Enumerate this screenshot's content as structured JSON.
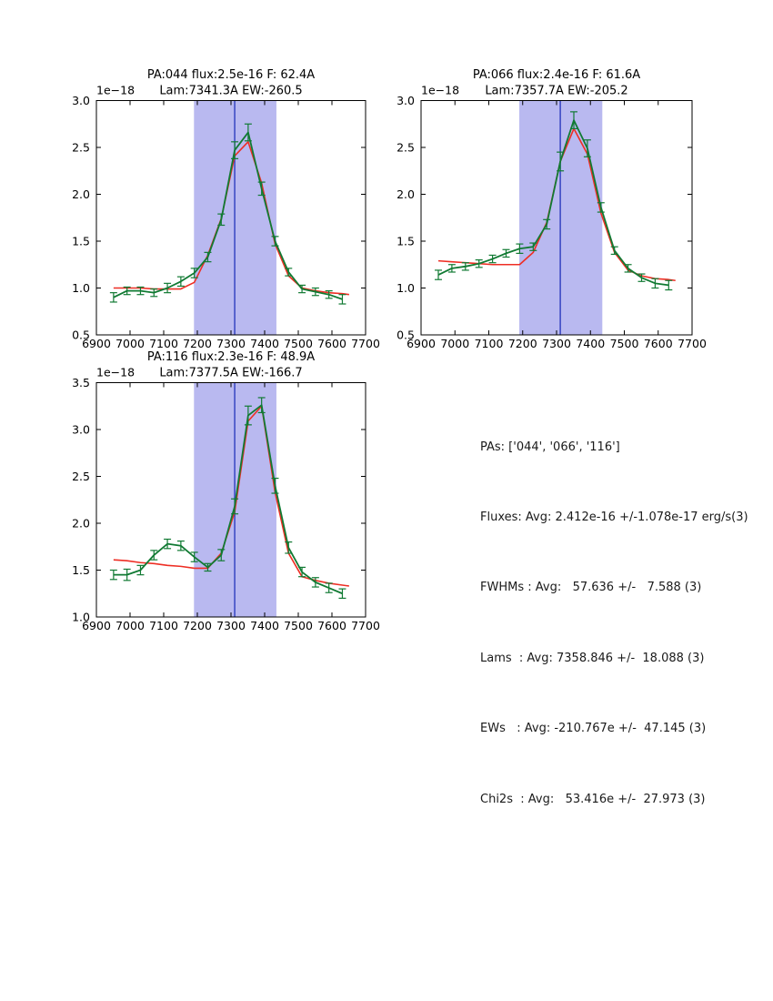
{
  "window": {
    "background": "#ffffff"
  },
  "colors": {
    "data_line": "#117a33",
    "fit_line": "#ee2e24",
    "band_fill": "#b9b9f0",
    "center_line": "#2233bb",
    "axis": "#000000",
    "text": "#1a1a1a"
  },
  "chart_data": [
    {
      "type": "line",
      "id": "pa-044",
      "title_line1": "PA:044 flux:2.5e-16 F: 62.4A",
      "title_line2": "Lam:7341.3A EW:-260.5",
      "offset_label": "1e−18",
      "xlim": [
        6900,
        7700
      ],
      "ylim": [
        0.5,
        3.0
      ],
      "xticks": [
        6900,
        7000,
        7100,
        7200,
        7300,
        7400,
        7500,
        7600,
        7700
      ],
      "yticks": [
        0.5,
        1.0,
        1.5,
        2.0,
        2.5,
        3.0
      ],
      "band": [
        7190,
        7435
      ],
      "vline": 7311,
      "grid": false,
      "x": [
        6951,
        6991,
        7031,
        7071,
        7111,
        7151,
        7191,
        7231,
        7271,
        7311,
        7351,
        7391,
        7431,
        7471,
        7511,
        7551,
        7591,
        7631
      ],
      "series": [
        {
          "name": "data-with-errorbars",
          "color_key": "data_line",
          "values": [
            0.9,
            0.97,
            0.97,
            0.95,
            1.0,
            1.07,
            1.16,
            1.33,
            1.73,
            2.47,
            2.66,
            2.06,
            1.5,
            1.17,
            0.99,
            0.96,
            0.93,
            0.88
          ],
          "yerr": [
            0.05,
            0.04,
            0.04,
            0.04,
            0.05,
            0.05,
            0.05,
            0.05,
            0.06,
            0.09,
            0.09,
            0.07,
            0.05,
            0.04,
            0.04,
            0.04,
            0.04,
            0.05
          ]
        },
        {
          "name": "gaussian-fit",
          "color_key": "fit_line",
          "x": [
            6951,
            6991,
            7031,
            7071,
            7111,
            7151,
            7191,
            7231,
            7271,
            7311,
            7351,
            7391,
            7431,
            7471,
            7511,
            7551,
            7591,
            7631,
            7651
          ],
          "values": [
            1.0,
            1.0,
            1.0,
            0.99,
            0.99,
            0.99,
            1.06,
            1.35,
            1.74,
            2.41,
            2.56,
            2.12,
            1.47,
            1.13,
            1.0,
            0.97,
            0.95,
            0.94,
            0.93
          ]
        }
      ]
    },
    {
      "type": "line",
      "id": "pa-066",
      "title_line1": "PA:066 flux:2.4e-16 F: 61.6A",
      "title_line2": "Lam:7357.7A EW:-205.2",
      "offset_label": "1e−18",
      "xlim": [
        6900,
        7700
      ],
      "ylim": [
        0.5,
        3.0
      ],
      "xticks": [
        6900,
        7000,
        7100,
        7200,
        7300,
        7400,
        7500,
        7600,
        7700
      ],
      "yticks": [
        0.5,
        1.0,
        1.5,
        2.0,
        2.5,
        3.0
      ],
      "band": [
        7190,
        7435
      ],
      "vline": 7311,
      "grid": false,
      "x": [
        6951,
        6991,
        7031,
        7071,
        7111,
        7151,
        7191,
        7231,
        7271,
        7311,
        7351,
        7391,
        7431,
        7471,
        7511,
        7551,
        7591,
        7631
      ],
      "series": [
        {
          "name": "data-with-errorbars",
          "color_key": "data_line",
          "values": [
            1.14,
            1.21,
            1.23,
            1.26,
            1.31,
            1.37,
            1.42,
            1.44,
            1.68,
            2.35,
            2.79,
            2.49,
            1.86,
            1.4,
            1.21,
            1.11,
            1.05,
            1.03
          ],
          "yerr": [
            0.05,
            0.04,
            0.04,
            0.04,
            0.04,
            0.04,
            0.05,
            0.04,
            0.05,
            0.1,
            0.09,
            0.09,
            0.05,
            0.04,
            0.04,
            0.04,
            0.05,
            0.05
          ]
        },
        {
          "name": "gaussian-fit",
          "color_key": "fit_line",
          "x": [
            6951,
            6991,
            7031,
            7071,
            7111,
            7151,
            7191,
            7231,
            7271,
            7311,
            7351,
            7391,
            7431,
            7471,
            7511,
            7551,
            7591,
            7631,
            7651
          ],
          "values": [
            1.29,
            1.28,
            1.27,
            1.26,
            1.25,
            1.25,
            1.25,
            1.38,
            1.7,
            2.35,
            2.7,
            2.43,
            1.8,
            1.38,
            1.19,
            1.13,
            1.1,
            1.09,
            1.08
          ]
        }
      ]
    },
    {
      "type": "line",
      "id": "pa-116",
      "title_line1": "PA:116 flux:2.3e-16 F: 48.9A",
      "title_line2": "Lam:7377.5A EW:-166.7",
      "offset_label": "1e−18",
      "xlim": [
        6900,
        7700
      ],
      "ylim": [
        1.0,
        3.5
      ],
      "xticks": [
        6900,
        7000,
        7100,
        7200,
        7300,
        7400,
        7500,
        7600,
        7700
      ],
      "yticks": [
        1.0,
        1.5,
        2.0,
        2.5,
        3.0,
        3.5
      ],
      "band": [
        7190,
        7435
      ],
      "vline": 7311,
      "grid": false,
      "x": [
        6951,
        6991,
        7031,
        7071,
        7111,
        7151,
        7191,
        7231,
        7271,
        7311,
        7351,
        7391,
        7431,
        7471,
        7511,
        7551,
        7591,
        7631
      ],
      "series": [
        {
          "name": "data-with-errorbars",
          "color_key": "data_line",
          "values": [
            1.45,
            1.45,
            1.5,
            1.66,
            1.78,
            1.76,
            1.64,
            1.53,
            1.66,
            2.18,
            3.15,
            3.26,
            2.4,
            1.74,
            1.48,
            1.37,
            1.31,
            1.25
          ],
          "yerr": [
            0.05,
            0.06,
            0.05,
            0.05,
            0.05,
            0.05,
            0.05,
            0.04,
            0.06,
            0.08,
            0.1,
            0.08,
            0.08,
            0.06,
            0.05,
            0.05,
            0.05,
            0.05
          ]
        },
        {
          "name": "gaussian-fit",
          "color_key": "fit_line",
          "x": [
            6951,
            6991,
            7031,
            7071,
            7111,
            7151,
            7191,
            7231,
            7271,
            7311,
            7351,
            7391,
            7431,
            7471,
            7511,
            7551,
            7591,
            7631,
            7651
          ],
          "values": [
            1.61,
            1.6,
            1.58,
            1.57,
            1.55,
            1.54,
            1.52,
            1.52,
            1.68,
            2.12,
            3.09,
            3.25,
            2.33,
            1.68,
            1.43,
            1.39,
            1.36,
            1.34,
            1.33
          ]
        }
      ]
    }
  ],
  "summary": {
    "lines": [
      "PAs: ['044', '066', '116']",
      "Fluxes: Avg: 2.412e-16 +/-1.078e-17 erg/s(3)",
      "FWHMs : Avg:   57.636 +/-   7.588 (3)",
      "Lams  : Avg: 7358.846 +/-  18.088 (3)",
      "EWs   : Avg: -210.767e +/-  47.145 (3)",
      "Chi2s  : Avg:   53.416e +/-  27.973 (3)"
    ]
  }
}
